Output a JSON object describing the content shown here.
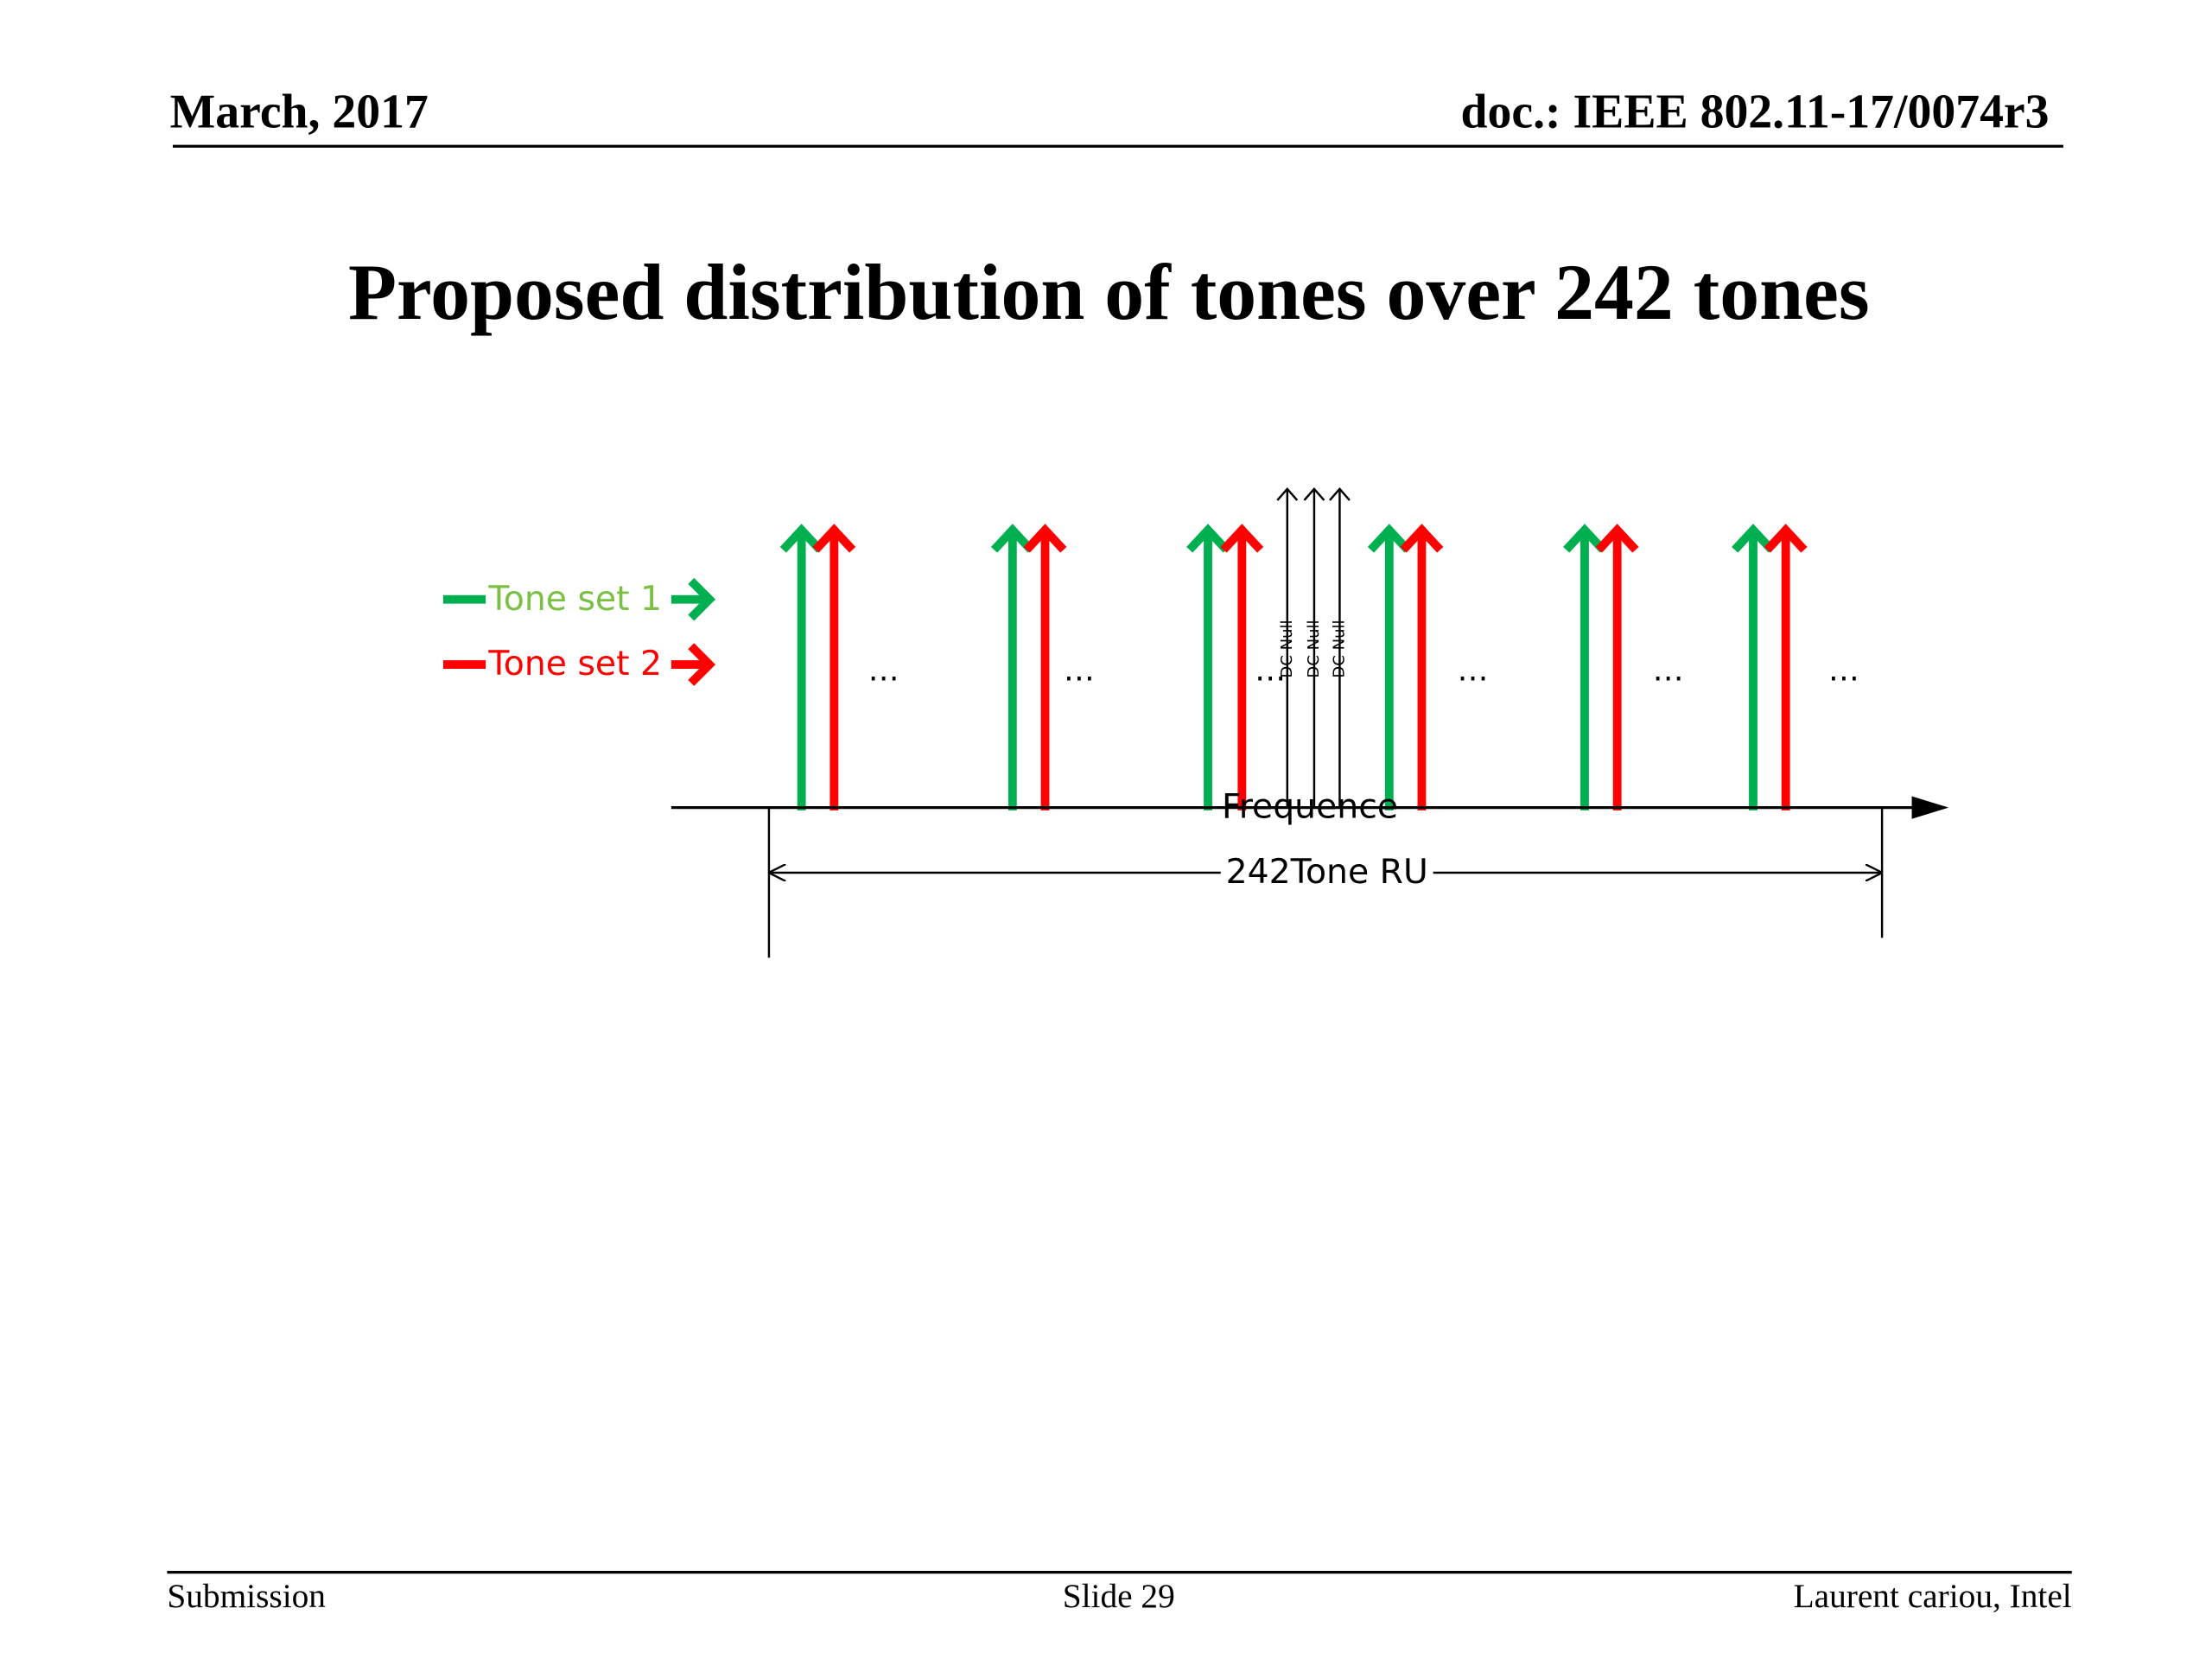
{
  "header": {
    "date": "March, 2017",
    "doc": "doc.: IEEE 802.11-17/0074r3"
  },
  "title": "Proposed distribution of tones over 242 tones",
  "legend": [
    "Tone set 1",
    "Tone set 2"
  ],
  "ellipses": [
    "…",
    "…",
    "…",
    "…",
    "…",
    "…"
  ],
  "dc_nulls": [
    "DC Null",
    "DC Null",
    "DC Null"
  ],
  "axis_label": "Frequence",
  "span_label": "242Tone RU",
  "footer": {
    "left": "Submission",
    "center": "Slide 29",
    "right": "Laurent cariou, Intel"
  }
}
